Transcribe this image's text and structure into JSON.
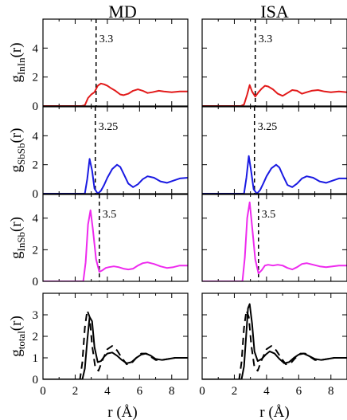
{
  "titles": {
    "left": "MD",
    "right": "ISA"
  },
  "xlabel": {
    "main": "r (",
    "unit": "Å",
    "close": ")"
  },
  "colors": {
    "inin": "#e21a1a",
    "sbsb": "#1a1ae2",
    "insb": "#ee2aee",
    "total": "#000000"
  },
  "chart_data": [
    {
      "type": "line",
      "row": 0,
      "ylabel": {
        "main": "g",
        "sub": "InIn",
        "tail": "(r)"
      },
      "xlim": [
        0,
        9
      ],
      "ylim": [
        0,
        6
      ],
      "xticks": [
        0,
        2,
        4,
        6,
        8
      ],
      "yticks": [
        0,
        2,
        4
      ],
      "panels": [
        {
          "column": "MD",
          "vline": 3.3,
          "annotation": "3.3",
          "series": [
            {
              "color_key": "inin",
              "style": "solid",
              "x": [
                0,
                2.4,
                2.6,
                2.8,
                3.0,
                3.2,
                3.4,
                3.6,
                3.8,
                4.0,
                4.2,
                4.5,
                4.8,
                5.0,
                5.3,
                5.6,
                5.9,
                6.2,
                6.5,
                6.8,
                7.2,
                7.5,
                8.0,
                8.5,
                9.0
              ],
              "y": [
                0,
                0,
                0.05,
                0.55,
                0.8,
                0.95,
                1.4,
                1.55,
                1.5,
                1.4,
                1.25,
                1.05,
                0.8,
                0.75,
                0.85,
                1.05,
                1.15,
                1.05,
                0.9,
                0.95,
                1.05,
                1.0,
                0.95,
                1.0,
                1.0
              ]
            }
          ]
        },
        {
          "column": "ISA",
          "vline": 3.3,
          "annotation": "3.3",
          "series": [
            {
              "color_key": "inin",
              "style": "solid",
              "x": [
                0,
                2.4,
                2.6,
                2.8,
                2.95,
                3.1,
                3.3,
                3.5,
                3.7,
                3.9,
                4.1,
                4.4,
                4.7,
                5.0,
                5.3,
                5.6,
                5.9,
                6.2,
                6.5,
                6.8,
                7.2,
                7.6,
                8.0,
                8.5,
                9.0
              ],
              "y": [
                0,
                0,
                0.1,
                0.8,
                1.45,
                1.0,
                0.65,
                0.95,
                1.2,
                1.4,
                1.35,
                1.15,
                0.85,
                0.7,
                0.9,
                1.1,
                1.05,
                0.85,
                0.95,
                1.05,
                1.1,
                1.0,
                0.95,
                1.0,
                0.95
              ]
            }
          ]
        }
      ]
    },
    {
      "type": "line",
      "row": 1,
      "ylabel": {
        "main": "g",
        "sub": "SbSb",
        "tail": "(r)"
      },
      "xlim": [
        0,
        9
      ],
      "ylim": [
        0,
        6
      ],
      "xticks": [
        0,
        2,
        4,
        6,
        8
      ],
      "yticks": [
        0,
        2,
        4
      ],
      "panels": [
        {
          "column": "MD",
          "vline": 3.25,
          "annotation": "3.25",
          "series": [
            {
              "color_key": "sbsb",
              "style": "solid",
              "x": [
                0,
                2.6,
                2.75,
                2.9,
                3.05,
                3.2,
                3.4,
                3.6,
                3.8,
                4.0,
                4.3,
                4.6,
                4.8,
                5.0,
                5.3,
                5.6,
                5.9,
                6.2,
                6.5,
                6.9,
                7.3,
                7.7,
                8.1,
                8.5,
                9.0
              ],
              "y": [
                0,
                0,
                1.0,
                2.4,
                1.6,
                0.35,
                0.0,
                0.2,
                0.6,
                1.1,
                1.7,
                2.0,
                1.85,
                1.4,
                0.7,
                0.45,
                0.65,
                1.0,
                1.2,
                1.1,
                0.85,
                0.75,
                0.9,
                1.05,
                1.1
              ]
            }
          ]
        },
        {
          "column": "ISA",
          "vline": 3.25,
          "annotation": "3.25",
          "series": [
            {
              "color_key": "sbsb",
              "style": "solid",
              "x": [
                0,
                2.6,
                2.75,
                2.9,
                3.05,
                3.2,
                3.4,
                3.6,
                3.8,
                4.0,
                4.3,
                4.6,
                4.8,
                5.0,
                5.3,
                5.6,
                5.9,
                6.2,
                6.5,
                6.9,
                7.3,
                7.7,
                8.1,
                8.5,
                9.0
              ],
              "y": [
                0,
                0,
                1.1,
                2.6,
                1.5,
                0.3,
                0.0,
                0.25,
                0.7,
                1.2,
                1.75,
                2.0,
                1.8,
                1.3,
                0.6,
                0.45,
                0.7,
                1.05,
                1.2,
                1.1,
                0.85,
                0.75,
                0.9,
                1.05,
                1.05
              ]
            }
          ]
        }
      ]
    },
    {
      "type": "line",
      "row": 2,
      "ylabel": {
        "main": "g",
        "sub": "InSb",
        "tail": "(r)"
      },
      "xlim": [
        0,
        9
      ],
      "ylim": [
        0,
        5.5
      ],
      "xticks": [
        0,
        2,
        4,
        6,
        8
      ],
      "yticks": [
        0,
        2,
        4
      ],
      "panels": [
        {
          "column": "MD",
          "vline": 3.5,
          "annotation": "3.5",
          "series": [
            {
              "color_key": "insb",
              "style": "solid",
              "x": [
                0,
                2.5,
                2.65,
                2.8,
                2.95,
                3.1,
                3.3,
                3.5,
                3.7,
                3.9,
                4.1,
                4.4,
                4.7,
                5.0,
                5.3,
                5.6,
                5.9,
                6.2,
                6.5,
                6.9,
                7.3,
                7.7,
                8.1,
                8.5,
                9.0
              ],
              "y": [
                0,
                0,
                1.2,
                3.6,
                4.5,
                3.3,
                1.4,
                0.6,
                0.7,
                0.85,
                0.9,
                0.95,
                0.9,
                0.8,
                0.75,
                0.8,
                1.0,
                1.15,
                1.2,
                1.1,
                0.95,
                0.85,
                0.9,
                1.0,
                1.0
              ]
            }
          ]
        },
        {
          "column": "ISA",
          "vline": 3.5,
          "annotation": "3.5",
          "series": [
            {
              "color_key": "insb",
              "style": "solid",
              "x": [
                0,
                2.5,
                2.65,
                2.8,
                2.95,
                3.1,
                3.3,
                3.5,
                3.7,
                3.9,
                4.1,
                4.4,
                4.7,
                5.0,
                5.3,
                5.6,
                5.9,
                6.2,
                6.5,
                6.9,
                7.3,
                7.7,
                8.1,
                8.5,
                9.0
              ],
              "y": [
                0,
                0,
                1.5,
                4.0,
                5.0,
                3.5,
                1.4,
                0.5,
                0.7,
                1.0,
                1.05,
                1.0,
                1.05,
                1.0,
                0.85,
                0.75,
                0.9,
                1.1,
                1.15,
                1.05,
                0.95,
                0.9,
                0.95,
                1.0,
                1.0
              ]
            }
          ]
        }
      ]
    },
    {
      "type": "line",
      "row": 3,
      "ylabel": {
        "main": "g",
        "sub": "total",
        "tail": "(r)"
      },
      "xlim": [
        0,
        9
      ],
      "ylim": [
        0,
        4
      ],
      "xticks": [
        0,
        2,
        4,
        6,
        8
      ],
      "yticks": [
        0,
        1,
        2,
        3
      ],
      "xtick_labels": [
        "0",
        "2",
        "4",
        "6",
        "8"
      ],
      "panels": [
        {
          "column": "MD",
          "annotation": "",
          "series": [
            {
              "color_key": "total",
              "style": "solid",
              "x": [
                0,
                2.45,
                2.6,
                2.75,
                2.9,
                3.05,
                3.2,
                3.4,
                3.6,
                3.8,
                4.0,
                4.3,
                4.6,
                4.9,
                5.2,
                5.5,
                5.8,
                6.1,
                6.4,
                6.7,
                7.0,
                7.4,
                7.8,
                8.2,
                8.6,
                9.0
              ],
              "y": [
                0,
                0,
                0.5,
                1.8,
                2.9,
                2.7,
                1.5,
                0.8,
                0.85,
                1.05,
                1.2,
                1.25,
                1.1,
                0.9,
                0.75,
                0.8,
                1.0,
                1.15,
                1.2,
                1.1,
                0.95,
                0.9,
                0.95,
                1.0,
                1.0,
                1.0
              ]
            },
            {
              "color_key": "total",
              "style": "dashed",
              "x": [
                0,
                2.3,
                2.45,
                2.6,
                2.75,
                2.9,
                3.05,
                3.25,
                3.45,
                3.7,
                4.0,
                4.3,
                4.6,
                4.9,
                5.2,
                5.5,
                5.8,
                6.1,
                6.4,
                6.7,
                7.0,
                7.4,
                7.8,
                8.2,
                8.6,
                9.0
              ],
              "y": [
                0,
                0,
                0.8,
                2.4,
                3.2,
                2.9,
                1.6,
                0.55,
                0.4,
                0.9,
                1.4,
                1.55,
                1.35,
                1.0,
                0.7,
                0.75,
                1.0,
                1.2,
                1.2,
                1.05,
                0.9,
                0.9,
                0.95,
                1.0,
                1.0,
                1.0
              ]
            }
          ]
        },
        {
          "column": "ISA",
          "annotation": "",
          "series": [
            {
              "color_key": "total",
              "style": "solid",
              "x": [
                0,
                2.45,
                2.6,
                2.75,
                2.85,
                2.95,
                3.1,
                3.25,
                3.45,
                3.7,
                3.95,
                4.2,
                4.5,
                4.8,
                5.1,
                5.4,
                5.7,
                6.0,
                6.3,
                6.6,
                7.0,
                7.4,
                7.8,
                8.2,
                8.6,
                9.0
              ],
              "y": [
                0,
                0,
                0.6,
                2.2,
                3.3,
                3.5,
                2.6,
                1.3,
                0.85,
                0.95,
                1.15,
                1.3,
                1.2,
                0.95,
                0.75,
                0.8,
                1.0,
                1.15,
                1.2,
                1.1,
                0.95,
                0.9,
                0.95,
                1.0,
                1.0,
                1.0
              ]
            },
            {
              "color_key": "total",
              "style": "dashed",
              "x": [
                0,
                2.3,
                2.45,
                2.6,
                2.75,
                2.9,
                3.05,
                3.25,
                3.45,
                3.7,
                4.0,
                4.3,
                4.6,
                4.9,
                5.2,
                5.5,
                5.8,
                6.1,
                6.4,
                6.7,
                7.0,
                7.4,
                7.8,
                8.2,
                8.6,
                9.0
              ],
              "y": [
                0,
                0,
                0.8,
                2.4,
                3.2,
                2.9,
                1.6,
                0.55,
                0.4,
                0.9,
                1.4,
                1.55,
                1.35,
                1.0,
                0.7,
                0.75,
                1.0,
                1.2,
                1.2,
                1.05,
                0.9,
                0.9,
                0.95,
                1.0,
                1.0,
                1.0
              ]
            }
          ]
        }
      ]
    }
  ]
}
